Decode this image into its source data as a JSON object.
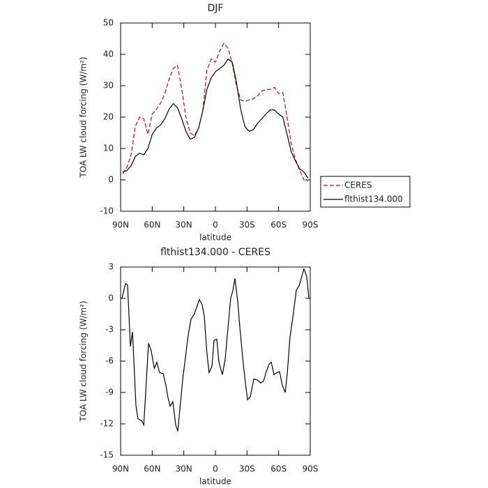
{
  "chart_data": [
    {
      "type": "line",
      "title": "DJF",
      "xlabel": "latitude",
      "ylabel": "TOA LW cloud forcing (W/m²)",
      "x": [
        88,
        84,
        80,
        76,
        72,
        68,
        64,
        60,
        56,
        52,
        48,
        44,
        40,
        36,
        32,
        28,
        24,
        20,
        16,
        12,
        8,
        4,
        0,
        -4,
        -8,
        -12,
        -16,
        -20,
        -24,
        -28,
        -32,
        -36,
        -40,
        -44,
        -48,
        -52,
        -56,
        -60,
        -64,
        -68,
        -72,
        -76,
        -80,
        -84,
        -88
      ],
      "series": [
        {
          "name": "CERES",
          "color": "#e00000",
          "dashed": true,
          "values": [
            2,
            4,
            8,
            17,
            20,
            19.5,
            14.5,
            21,
            22.5,
            24.5,
            27.5,
            32,
            35.5,
            36.5,
            29,
            20,
            15,
            14,
            16.5,
            22,
            35,
            38.5,
            37.5,
            41,
            43.5,
            42,
            37,
            30,
            25.5,
            25,
            25.5,
            25.8,
            26.8,
            28.3,
            28.8,
            28.8,
            29.5,
            27.5,
            27.8,
            20,
            11.5,
            6.5,
            3,
            0,
            -0.5
          ]
        },
        {
          "name": "flthist134.000",
          "color": "#000000",
          "dashed": false,
          "values": [
            2.5,
            3,
            4.5,
            7.5,
            8.5,
            8,
            10,
            14.5,
            16.5,
            17.5,
            19.5,
            22.5,
            24.3,
            23,
            19.5,
            15.5,
            13,
            13.5,
            16.5,
            22,
            29,
            32.5,
            34.5,
            35.5,
            36.5,
            38.5,
            37.5,
            31,
            22.5,
            17,
            15.5,
            16,
            18,
            19.5,
            21,
            22.3,
            22.3,
            21,
            20,
            14.5,
            9,
            6,
            3.5,
            2.5,
            0.5
          ]
        }
      ],
      "xlim": [
        90,
        -90
      ],
      "xticks": [
        {
          "value": 90,
          "label": "90N"
        },
        {
          "value": 60,
          "label": "60N"
        },
        {
          "value": 30,
          "label": "30N"
        },
        0,
        {
          "value": -30,
          "label": "30S"
        },
        {
          "value": -60,
          "label": "60S"
        },
        {
          "value": -90,
          "label": "90S"
        }
      ],
      "ylim": [
        -10,
        50
      ],
      "yticks": [
        -10,
        0,
        10,
        20,
        30,
        40,
        50
      ],
      "legend_position": "right"
    },
    {
      "type": "line",
      "title": "flthist134.000 - CERES",
      "xlabel": "latitude",
      "ylabel": "TOA LW cloud forcing (W/m²)",
      "x": [
        88.7,
        85.4,
        83.4,
        80.7,
        78.7,
        75.4,
        73.5,
        70,
        68,
        63.5,
        61,
        58,
        55.6,
        53,
        49.6,
        47,
        45,
        43,
        40.4,
        37.7,
        35.7,
        31,
        29,
        25.8,
        23.2,
        20,
        15.2,
        12.7,
        10.6,
        8,
        6,
        3.3,
        1.3,
        -1.3,
        -3.3,
        -6.6,
        -9.3,
        -11.3,
        -14.6,
        -16.5,
        -18.5,
        -21.2,
        -23.2,
        -26.5,
        -28.5,
        -30.5,
        -33.2,
        -36.4,
        -39.7,
        -43,
        -45.7,
        -48.3,
        -51,
        -53,
        -55.6,
        -58.2,
        -60.9,
        -63.5,
        -66.2,
        -68.2,
        -70.8,
        -73.4,
        -76.8,
        -79.4,
        -82,
        -84,
        -86.7,
        -88.7
      ],
      "series": [
        {
          "color": "#000000",
          "dashed": false,
          "values": [
            0,
            1.4,
            1.3,
            -4.6,
            -3.2,
            -10.3,
            -11.5,
            -11.7,
            -12.1,
            -4.3,
            -5,
            -6.7,
            -6.1,
            -7.1,
            -7.2,
            -8.3,
            -9.5,
            -10.3,
            -9.9,
            -12.1,
            -12.7,
            -7.7,
            -6.1,
            -3.5,
            -2,
            -1.5,
            -0.1,
            -0.6,
            -1.7,
            -5.3,
            -7.1,
            -6.5,
            -4,
            -3.9,
            -6.1,
            -7.3,
            -5.8,
            -3.5,
            0.1,
            0.7,
            1.9,
            -0.3,
            -2.8,
            -6.3,
            -8.1,
            -9.7,
            -9.4,
            -7.7,
            -7.8,
            -8.1,
            -7.9,
            -7,
            -6.3,
            -6.1,
            -7.3,
            -7.1,
            -7,
            -8.3,
            -9,
            -7.2,
            -3.7,
            -1.9,
            0.8,
            1.2,
            2.1,
            2.8,
            2.1,
            0
          ]
        }
      ],
      "xlim": [
        90,
        -90
      ],
      "xticks": [
        {
          "value": 90,
          "label": "90N"
        },
        {
          "value": 60,
          "label": "60N"
        },
        {
          "value": 30,
          "label": "30N"
        },
        0,
        {
          "value": -30,
          "label": "30S"
        },
        {
          "value": -60,
          "label": "60S"
        },
        {
          "value": -90,
          "label": "90S"
        }
      ],
      "ylim": [
        -15,
        3
      ],
      "yticks": [
        -15,
        -12,
        -9,
        -6,
        -3,
        0,
        3
      ]
    }
  ]
}
